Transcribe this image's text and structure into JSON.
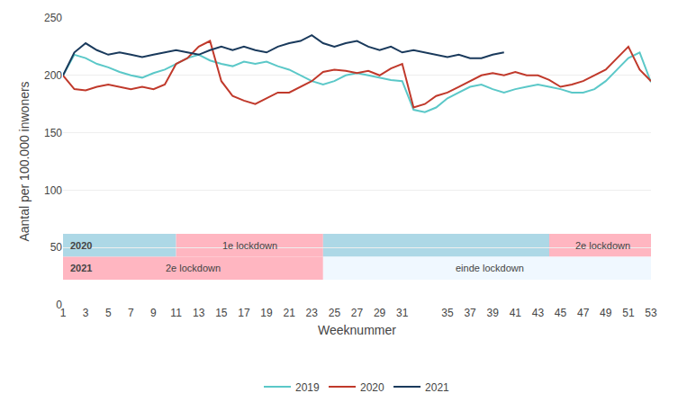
{
  "chart_data": {
    "type": "line",
    "xlabel": "Weeknummer",
    "ylabel": "Aantal per 100.000 inwoners",
    "x": [
      1,
      2,
      3,
      4,
      5,
      6,
      7,
      8,
      9,
      10,
      11,
      12,
      13,
      14,
      15,
      16,
      17,
      18,
      19,
      20,
      21,
      22,
      23,
      24,
      25,
      26,
      27,
      28,
      29,
      30,
      31,
      32,
      33,
      34,
      35,
      36,
      37,
      38,
      39,
      40,
      41,
      42,
      43,
      44,
      45,
      46,
      47,
      48,
      49,
      50,
      51,
      52,
      53
    ],
    "series": [
      {
        "name": "2019",
        "color": "#5bc8c8",
        "values": [
          200,
          218,
          215,
          210,
          207,
          203,
          200,
          198,
          202,
          205,
          210,
          215,
          218,
          213,
          210,
          208,
          212,
          210,
          212,
          208,
          205,
          200,
          195,
          192,
          195,
          200,
          202,
          200,
          198,
          196,
          195,
          170,
          168,
          172,
          180,
          185,
          190,
          192,
          188,
          185,
          188,
          190,
          192,
          190,
          188,
          185,
          185,
          188,
          195,
          205,
          215,
          220,
          194
        ]
      },
      {
        "name": "2020",
        "color": "#c0392b",
        "values": [
          200,
          188,
          187,
          190,
          192,
          190,
          188,
          190,
          188,
          192,
          210,
          215,
          225,
          230,
          195,
          182,
          178,
          175,
          180,
          185,
          185,
          190,
          195,
          203,
          205,
          204,
          202,
          204,
          200,
          206,
          210,
          172,
          175,
          182,
          185,
          190,
          195,
          200,
          202,
          200,
          203,
          200,
          200,
          196,
          190,
          192,
          195,
          200,
          205,
          215,
          225,
          205,
          195
        ]
      },
      {
        "name": "2021",
        "color": "#1a3a5c",
        "values": [
          200,
          220,
          228,
          222,
          218,
          220,
          218,
          216,
          218,
          220,
          222,
          220,
          218,
          222,
          225,
          222,
          225,
          222,
          220,
          225,
          228,
          230,
          235,
          228,
          225,
          228,
          230,
          225,
          222,
          225,
          220,
          222,
          220,
          218,
          216,
          218,
          215,
          215,
          218,
          220,
          null,
          null,
          null,
          null,
          null,
          null,
          null,
          null,
          null,
          null,
          null,
          null,
          null
        ]
      }
    ],
    "xlim": [
      1,
      53
    ],
    "ylim": [
      0,
      250
    ],
    "xticks": [
      1,
      3,
      5,
      7,
      9,
      11,
      13,
      15,
      17,
      19,
      21,
      23,
      25,
      27,
      29,
      31,
      35,
      37,
      39,
      41,
      43,
      45,
      47,
      49,
      51,
      53
    ],
    "yticks": [
      0,
      50,
      100,
      150,
      200,
      250
    ],
    "grid": "y",
    "legend": "bottom",
    "annotations": [
      {
        "text": "2020",
        "y": [
          42,
          62
        ],
        "bands": [
          {
            "start": 1,
            "end": 11,
            "color": "#add8e6"
          },
          {
            "start": 11,
            "end": 24,
            "color": "#ffb6c1",
            "text": "1e lockdown"
          },
          {
            "start": 24,
            "end": 44,
            "color": "#add8e6"
          },
          {
            "start": 44,
            "end": 53.5,
            "color": "#ffb6c1",
            "text": "2e lockdown"
          }
        ]
      },
      {
        "text": "2021",
        "y": [
          22,
          42
        ],
        "bands": [
          {
            "start": 1,
            "end": 24,
            "color": "#ffb6c1",
            "text": "2e lockdown"
          },
          {
            "start": 24,
            "end": 53.5,
            "color": "#f0f8ff",
            "text": "einde lockdown"
          }
        ]
      }
    ]
  }
}
